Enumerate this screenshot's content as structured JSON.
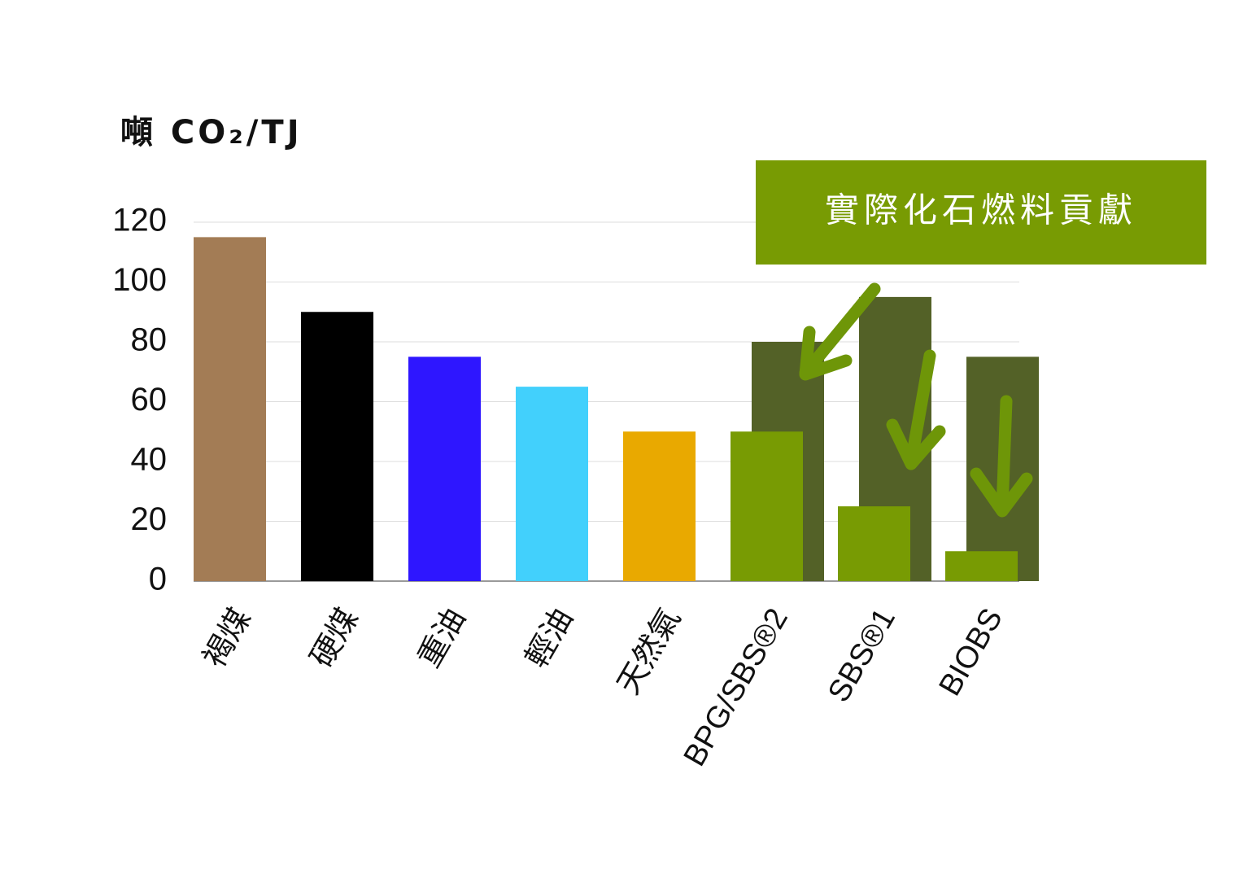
{
  "chart_data": {
    "type": "bar",
    "y_label": "噸 CO₂/TJ",
    "categories": [
      "褐煤",
      "硬煤",
      "重油",
      "輕油",
      "天然氣",
      "BPG/SBS®2",
      "SBS®1",
      "BIOBS"
    ],
    "series": [
      {
        "colors": [
          "#a37c55",
          "#000000",
          "#2e16ff",
          "#42d0fc",
          "#e9a900",
          "#789b03",
          "#789b03",
          "#789b03"
        ],
        "values": [
          115,
          90,
          75,
          65,
          50,
          50,
          25,
          10
        ]
      },
      {
        "color": "#536127",
        "values": [
          null,
          null,
          null,
          null,
          null,
          80,
          95,
          75
        ]
      }
    ],
    "annotation": "實際化石燃料貢獻",
    "annotation_color": "#789b03",
    "ylim": [
      0,
      120
    ],
    "yticks": [
      0,
      20,
      40,
      60,
      80,
      100,
      120
    ],
    "grid": true
  }
}
